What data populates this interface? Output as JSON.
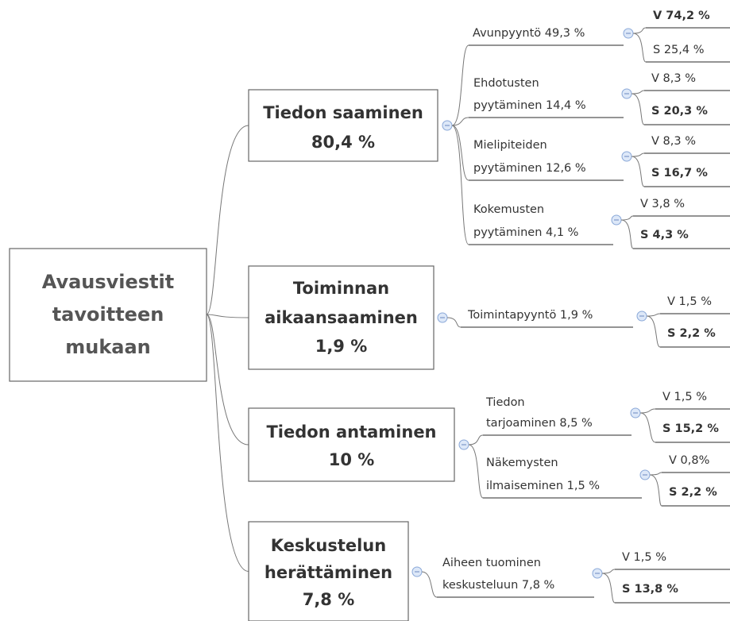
{
  "root": {
    "lines": [
      "Avausviestit",
      "tavoitteen",
      "mukaan"
    ]
  },
  "branches": [
    {
      "lines": [
        "Tiedon saaminen",
        "80,4 %"
      ],
      "subs": [
        {
          "lines": [
            "Avunpyyntö 49,3 %"
          ],
          "leaves": [
            {
              "text": "V 74,2 %",
              "bold": true
            },
            {
              "text": "S 25,4 %",
              "bold": false
            }
          ]
        },
        {
          "lines": [
            "Ehdotusten",
            "pyytäminen 14,4 %"
          ],
          "leaves": [
            {
              "text": "V 8,3 %",
              "bold": false
            },
            {
              "text": "S 20,3 %",
              "bold": true
            }
          ]
        },
        {
          "lines": [
            "Mielipiteiden",
            "pyytäminen 12,6 %"
          ],
          "leaves": [
            {
              "text": "V 8,3 %",
              "bold": false
            },
            {
              "text": "S 16,7 %",
              "bold": true
            }
          ]
        },
        {
          "lines": [
            "Kokemusten",
            "pyytäminen 4,1 %"
          ],
          "leaves": [
            {
              "text": "V 3,8 %",
              "bold": false
            },
            {
              "text": "S 4,3 %",
              "bold": true
            }
          ]
        }
      ]
    },
    {
      "lines": [
        "Toiminnan",
        "aikaansaaminen",
        "1,9 %"
      ],
      "subs": [
        {
          "lines": [
            "Toimintapyyntö 1,9 %"
          ],
          "leaves": [
            {
              "text": "V 1,5 %",
              "bold": false
            },
            {
              "text": "S 2,2 %",
              "bold": true
            }
          ]
        }
      ]
    },
    {
      "lines": [
        "Tiedon antaminen",
        "10 %"
      ],
      "subs": [
        {
          "lines": [
            "Tiedon",
            "tarjoaminen 8,5 %"
          ],
          "leaves": [
            {
              "text": "V 1,5 %",
              "bold": false
            },
            {
              "text": "S 15,2 %",
              "bold": true
            }
          ]
        },
        {
          "lines": [
            "Näkemysten",
            "ilmaiseminen 1,5 %"
          ],
          "leaves": [
            {
              "text": "V 0,8%",
              "bold": false
            },
            {
              "text": "S 2,2 %",
              "bold": true
            }
          ]
        }
      ]
    },
    {
      "lines": [
        "Keskustelun",
        "herättäminen",
        "7,8 %"
      ],
      "subs": [
        {
          "lines": [
            "Aiheen tuominen",
            "keskusteluun 7,8 %"
          ],
          "leaves": [
            {
              "text": "V 1,5 %",
              "bold": false
            },
            {
              "text": "S 13,8 %",
              "bold": true
            }
          ]
        }
      ]
    }
  ]
}
